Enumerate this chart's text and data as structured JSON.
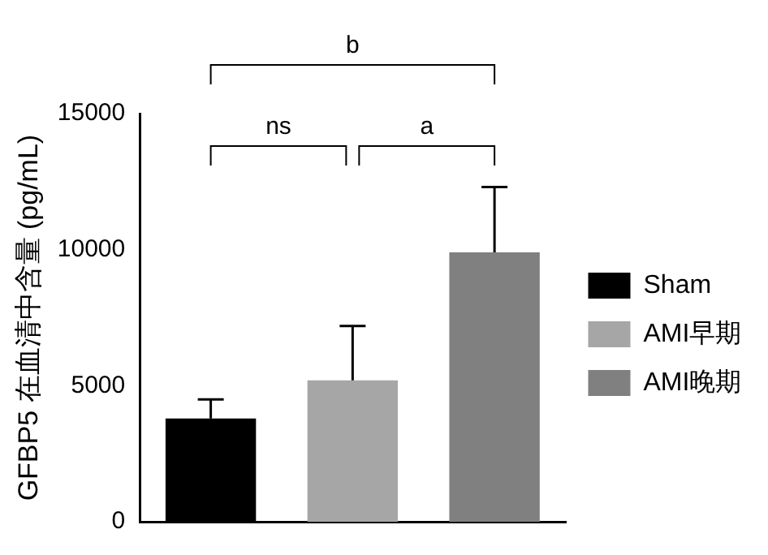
{
  "chart_data": {
    "type": "bar",
    "ylabel": "GFBP5 在血清中含量 (pg/mL)",
    "categories": [
      null,
      null,
      null
    ],
    "series": [
      {
        "name": "Sham",
        "color": "#000000",
        "values": [
          3800,
          null,
          null
        ],
        "errors": [
          [
            3800,
            4500
          ],
          null,
          null
        ]
      },
      {
        "name": "AMI早期",
        "color": "#a6a6a6",
        "values": [
          null,
          5200,
          null
        ],
        "errors": [
          null,
          [
            5200,
            7200
          ],
          null
        ]
      },
      {
        "name": "AMI晚期",
        "color": "#808080",
        "values": [
          null,
          null,
          9900
        ],
        "errors": [
          null,
          null,
          [
            9900,
            12300
          ]
        ]
      }
    ],
    "stacked": true,
    "ylim": [
      0,
      15000
    ],
    "yticks": [
      0,
      5000,
      10000,
      15000
    ],
    "grid": false,
    "legend": "right",
    "annotations": [
      "ns",
      "a",
      "b"
    ]
  }
}
